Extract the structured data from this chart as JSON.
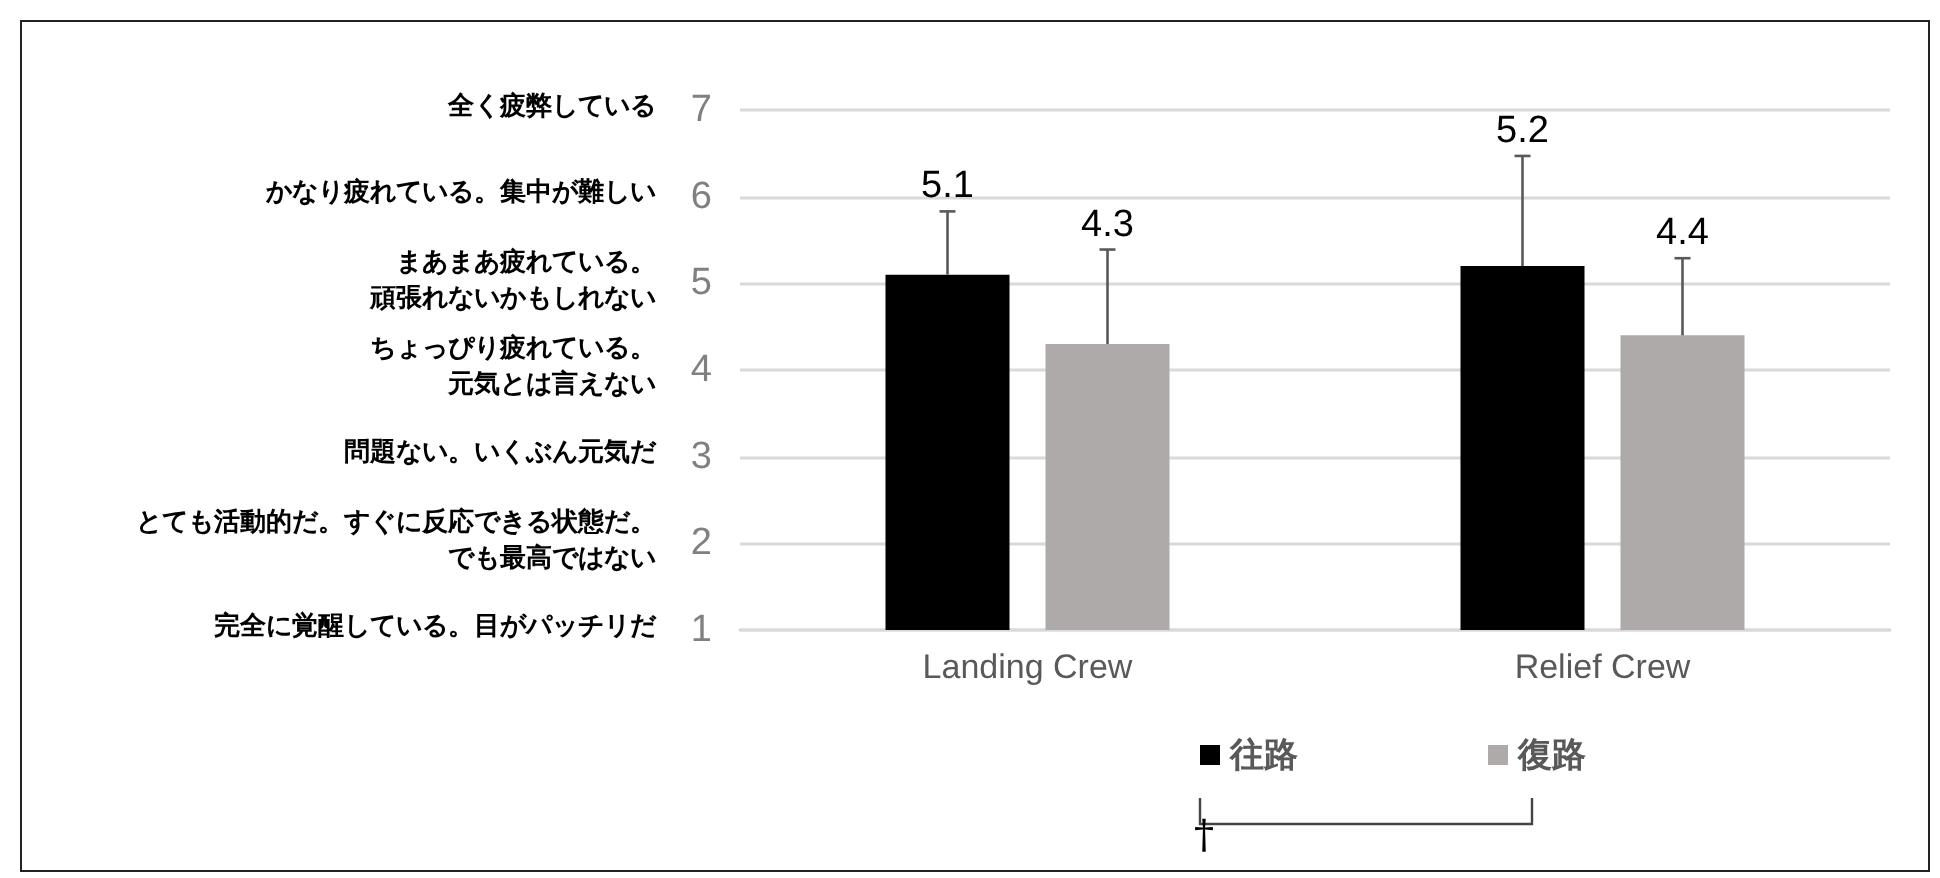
{
  "chart_data": {
    "type": "bar",
    "categories": [
      "Landing Crew",
      "Relief Crew"
    ],
    "series": [
      {
        "name": "往路",
        "color": "#000000",
        "values": [
          5.1,
          5.2
        ],
        "errors": [
          [
            5.1,
            5.83
          ],
          [
            5.2,
            6.47
          ]
        ]
      },
      {
        "name": "復路",
        "color": "#aeaaaa",
        "values": [
          4.3,
          4.4
        ],
        "errors": [
          [
            4.3,
            5.39
          ],
          [
            4.4,
            5.29
          ]
        ]
      }
    ],
    "ylim": [
      1,
      7
    ],
    "yticks": [
      1,
      2,
      3,
      4,
      5,
      6,
      7
    ],
    "grid": "y",
    "legend": "bottom",
    "data_labels": true,
    "annotations": [
      "全く疲弊している",
      "かなり疲れている。集中が難しい",
      "まあまあ疲れている。",
      "頑張れないかもしれない",
      "ちょっぴり疲れている。",
      "元気とは言えない",
      "問題ない。いくぶん元気だ",
      "とても活動的だ。すぐに反応できる状態だ。",
      "でも最高ではない",
      "完全に覚醒している。目がパッチリだ",
      "†"
    ]
  }
}
